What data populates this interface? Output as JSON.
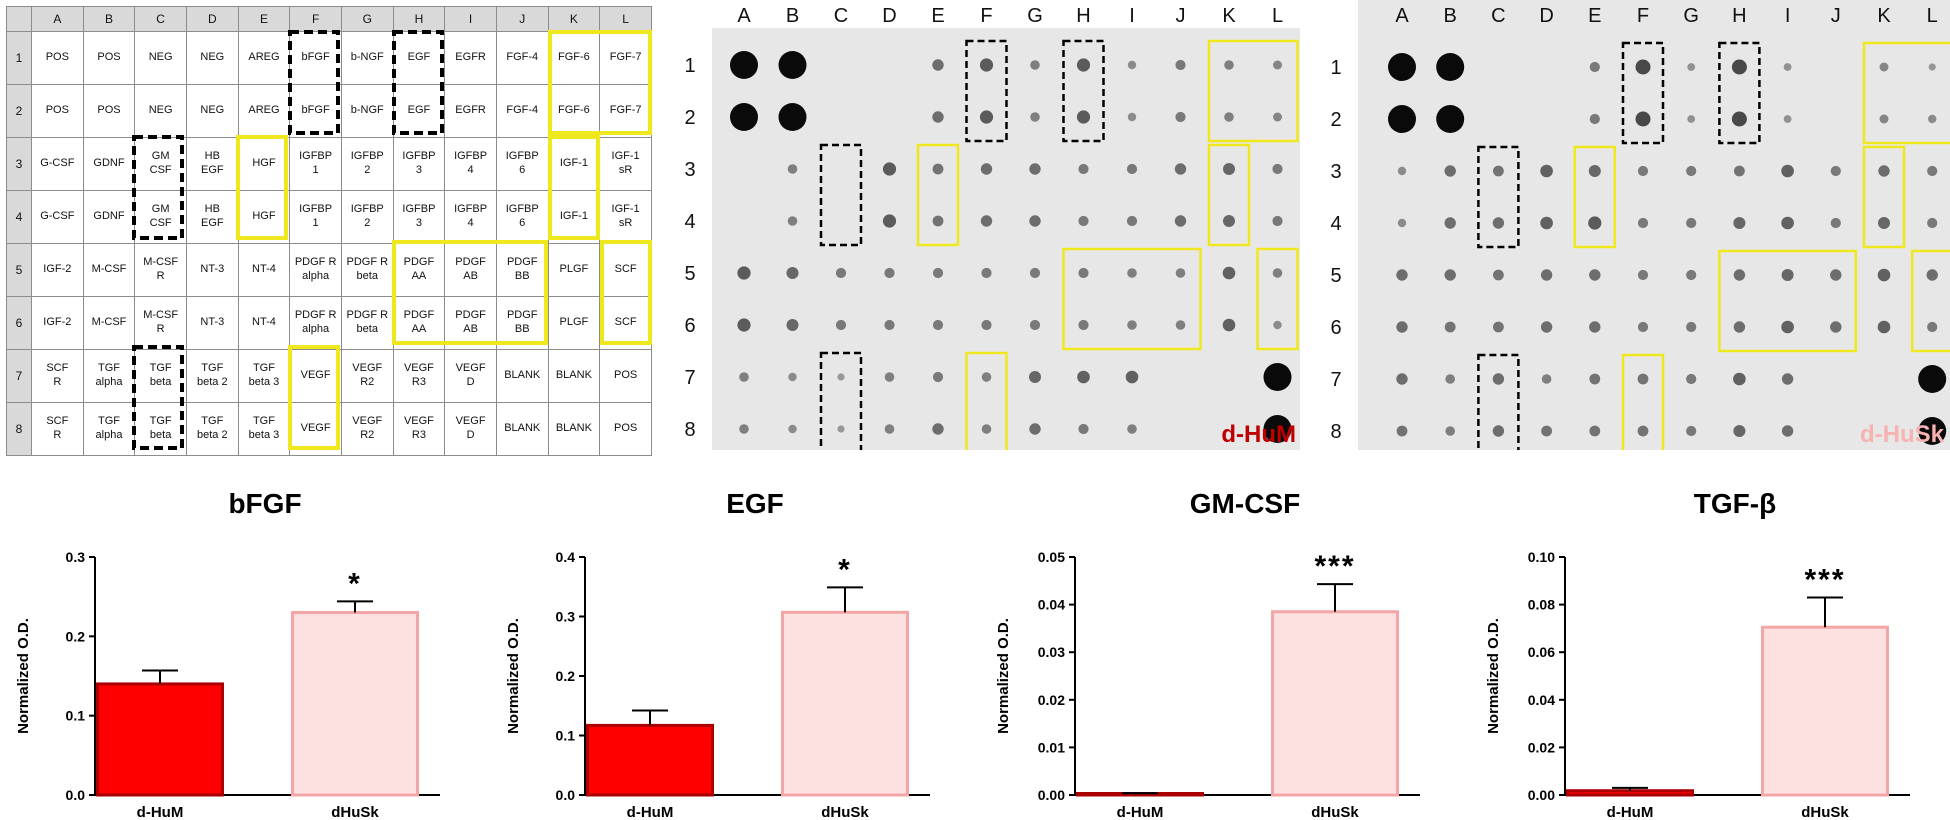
{
  "colors": {
    "dHuM": "#ff0000",
    "dHuM_edge": "#aa0000",
    "dHuSk": "#fde0e0",
    "dHuSk_edge": "#f4a6a6",
    "highlight_yellow": "#f0e81e",
    "highlight_black": "#000000",
    "blot_bg": "#e7e7e7",
    "label_dHuM": "#c00000",
    "label_dHuSk": "#f7b2b2"
  },
  "layout_table": {
    "columns": [
      "A",
      "B",
      "C",
      "D",
      "E",
      "F",
      "G",
      "H",
      "I",
      "J",
      "K",
      "L"
    ],
    "rows": [
      {
        "label": "1",
        "cells": [
          "POS",
          "POS",
          "NEG",
          "NEG",
          "AREG",
          "bFGF",
          "b-NGF",
          "EGF",
          "EGFR",
          "FGF-4",
          "FGF-6",
          "FGF-7"
        ]
      },
      {
        "label": "2",
        "cells": [
          "POS",
          "POS",
          "NEG",
          "NEG",
          "AREG",
          "bFGF",
          "b-NGF",
          "EGF",
          "EGFR",
          "FGF-4",
          "FGF-6",
          "FGF-7"
        ]
      },
      {
        "label": "3",
        "cells": [
          "G-CSF",
          "GDNF",
          "GM\nCSF",
          "HB\nEGF",
          "HGF",
          "IGFBP\n1",
          "IGFBP\n2",
          "IGFBP\n3",
          "IGFBP\n4",
          "IGFBP\n6",
          "IGF-1",
          "IGF-1\nsR"
        ]
      },
      {
        "label": "4",
        "cells": [
          "G-CSF",
          "GDNF",
          "GM\nCSF",
          "HB\nEGF",
          "HGF",
          "IGFBP\n1",
          "IGFBP\n2",
          "IGFBP\n3",
          "IGFBP\n4",
          "IGFBP\n6",
          "IGF-1",
          "IGF-1\nsR"
        ]
      },
      {
        "label": "5",
        "cells": [
          "IGF-2",
          "M-CSF",
          "M-CSF\nR",
          "NT-3",
          "NT-4",
          "PDGF R\nalpha",
          "PDGF R\nbeta",
          "PDGF\nAA",
          "PDGF\nAB",
          "PDGF\nBB",
          "PLGF",
          "SCF"
        ]
      },
      {
        "label": "6",
        "cells": [
          "IGF-2",
          "M-CSF",
          "M-CSF\nR",
          "NT-3",
          "NT-4",
          "PDGF R\nalpha",
          "PDGF R\nbeta",
          "PDGF\nAA",
          "PDGF\nAB",
          "PDGF\nBB",
          "PLGF",
          "SCF"
        ]
      },
      {
        "label": "7",
        "cells": [
          "SCF\nR",
          "TGF\nalpha",
          "TGF\nbeta",
          "TGF\nbeta 2",
          "TGF\nbeta 3",
          "VEGF",
          "VEGF\nR2",
          "VEGF\nR3",
          "VEGF\nD",
          "BLANK",
          "BLANK",
          "POS"
        ]
      },
      {
        "label": "8",
        "cells": [
          "SCF\nR",
          "TGF\nalpha",
          "TGF\nbeta",
          "TGF\nbeta 2",
          "TGF\nbeta 3",
          "VEGF",
          "VEGF\nR2",
          "VEGF\nR3",
          "VEGF\nD",
          "BLANK",
          "BLANK",
          "POS"
        ]
      }
    ]
  },
  "blots": [
    {
      "label": "d-HuM",
      "col_labels": [
        "A",
        "B",
        "C",
        "D",
        "E",
        "F",
        "G",
        "H",
        "I",
        "J",
        "K",
        "L"
      ],
      "row_labels": [
        "1",
        "2",
        "3",
        "4",
        "5",
        "6",
        "7",
        "8"
      ],
      "intensity": [
        [
          1.0,
          1.0,
          0,
          0,
          0.45,
          0.6,
          0.3,
          0.6,
          0.2,
          0.35,
          0.3,
          0.25
        ],
        [
          1.0,
          1.0,
          0,
          0,
          0.45,
          0.6,
          0.3,
          0.6,
          0.2,
          0.35,
          0.3,
          0.25
        ],
        [
          0,
          0.3,
          0,
          0.6,
          0.4,
          0.45,
          0.45,
          0.35,
          0.35,
          0.45,
          0.5,
          0.35
        ],
        [
          0,
          0.3,
          0,
          0.6,
          0.4,
          0.45,
          0.45,
          0.35,
          0.35,
          0.45,
          0.5,
          0.35
        ],
        [
          0.6,
          0.5,
          0.35,
          0.35,
          0.35,
          0.35,
          0.35,
          0.35,
          0.3,
          0.3,
          0.55,
          0.3
        ],
        [
          0.6,
          0.5,
          0.35,
          0.35,
          0.35,
          0.35,
          0.35,
          0.35,
          0.3,
          0.3,
          0.55,
          0.2
        ],
        [
          0.3,
          0.2,
          0.1,
          0.3,
          0.35,
          0.3,
          0.5,
          0.55,
          0.55,
          0,
          0,
          1.0
        ],
        [
          0.3,
          0.2,
          0.1,
          0.3,
          0.45,
          0.3,
          0.45,
          0.35,
          0.3,
          0,
          0,
          1.0
        ]
      ]
    },
    {
      "label": "d-HuSk",
      "col_labels": [
        "A",
        "B",
        "C",
        "D",
        "E",
        "F",
        "G",
        "H",
        "I",
        "J",
        "K",
        "L"
      ],
      "row_labels": [
        "1",
        "2",
        "3",
        "4",
        "5",
        "6",
        "7",
        "8"
      ],
      "intensity": [
        [
          1.0,
          1.0,
          0,
          0,
          0.35,
          0.75,
          0.15,
          0.75,
          0.15,
          0,
          0.25,
          0.1
        ],
        [
          1.0,
          1.0,
          0,
          0,
          0.35,
          0.75,
          0.15,
          0.75,
          0.15,
          0,
          0.25,
          0.2
        ],
        [
          0.2,
          0.45,
          0.4,
          0.55,
          0.5,
          0.35,
          0.35,
          0.4,
          0.55,
          0.35,
          0.45,
          0.35
        ],
        [
          0.2,
          0.45,
          0.45,
          0.55,
          0.6,
          0.35,
          0.35,
          0.5,
          0.55,
          0.35,
          0.5,
          0.35
        ],
        [
          0.45,
          0.45,
          0.4,
          0.45,
          0.45,
          0.35,
          0.35,
          0.45,
          0.5,
          0.45,
          0.55,
          0.45
        ],
        [
          0.45,
          0.4,
          0.4,
          0.45,
          0.45,
          0.35,
          0.35,
          0.45,
          0.55,
          0.45,
          0.55,
          0.35
        ],
        [
          0.45,
          0.3,
          0.45,
          0.3,
          0.4,
          0.4,
          0.35,
          0.55,
          0.45,
          0,
          0,
          1.0
        ],
        [
          0.4,
          0.3,
          0.45,
          0.4,
          0.4,
          0.4,
          0.35,
          0.5,
          0.45,
          0,
          0,
          1.0
        ]
      ]
    }
  ],
  "chart_data": [
    {
      "type": "bar",
      "title": "bFGF",
      "categories": [
        "d-HuM",
        "dHuSk"
      ],
      "values": [
        0.14,
        0.23
      ],
      "errors": [
        0.017,
        0.014
      ],
      "significance": [
        "",
        "*"
      ],
      "ylabel": "Normalized O.D.",
      "xlabel": "",
      "ylim": [
        0,
        0.3
      ],
      "yticks": [
        0.0,
        0.1,
        0.2,
        0.3
      ],
      "ytick_labels": [
        "0.0",
        "0.1",
        "0.2",
        "0.3"
      ]
    },
    {
      "type": "bar",
      "title": "EGF",
      "categories": [
        "d-HuM",
        "dHuSk"
      ],
      "values": [
        0.117,
        0.307
      ],
      "errors": [
        0.025,
        0.042
      ],
      "significance": [
        "",
        "*"
      ],
      "ylabel": "Normalized O.D.",
      "xlabel": "",
      "ylim": [
        0,
        0.4
      ],
      "yticks": [
        0.0,
        0.1,
        0.2,
        0.3,
        0.4
      ],
      "ytick_labels": [
        "0.0",
        "0.1",
        "0.2",
        "0.3",
        "0.4"
      ]
    },
    {
      "type": "bar",
      "title": "GM-CSF",
      "categories": [
        "d-HuM",
        "dHuSk"
      ],
      "values": [
        0.0002,
        0.0385
      ],
      "errors": [
        0.0002,
        0.0058
      ],
      "significance": [
        "",
        "***"
      ],
      "ylabel": "Normalized O.D.",
      "xlabel": "",
      "ylim": [
        0,
        0.05
      ],
      "yticks": [
        0.0,
        0.01,
        0.02,
        0.03,
        0.04,
        0.05
      ],
      "ytick_labels": [
        "0.00",
        "0.01",
        "0.02",
        "0.03",
        "0.04",
        "0.05"
      ]
    },
    {
      "type": "bar",
      "title": "TGF-β",
      "categories": [
        "d-HuM",
        "dHuSk"
      ],
      "values": [
        0.0018,
        0.0705
      ],
      "errors": [
        0.0012,
        0.0125
      ],
      "significance": [
        "",
        "***"
      ],
      "ylabel": "Normalized O.D.",
      "xlabel": "",
      "ylim": [
        0,
        0.1
      ],
      "yticks": [
        0.0,
        0.02,
        0.04,
        0.06,
        0.08,
        0.1
      ],
      "ytick_labels": [
        "0.00",
        "0.02",
        "0.04",
        "0.06",
        "0.08",
        "0.10"
      ]
    }
  ]
}
